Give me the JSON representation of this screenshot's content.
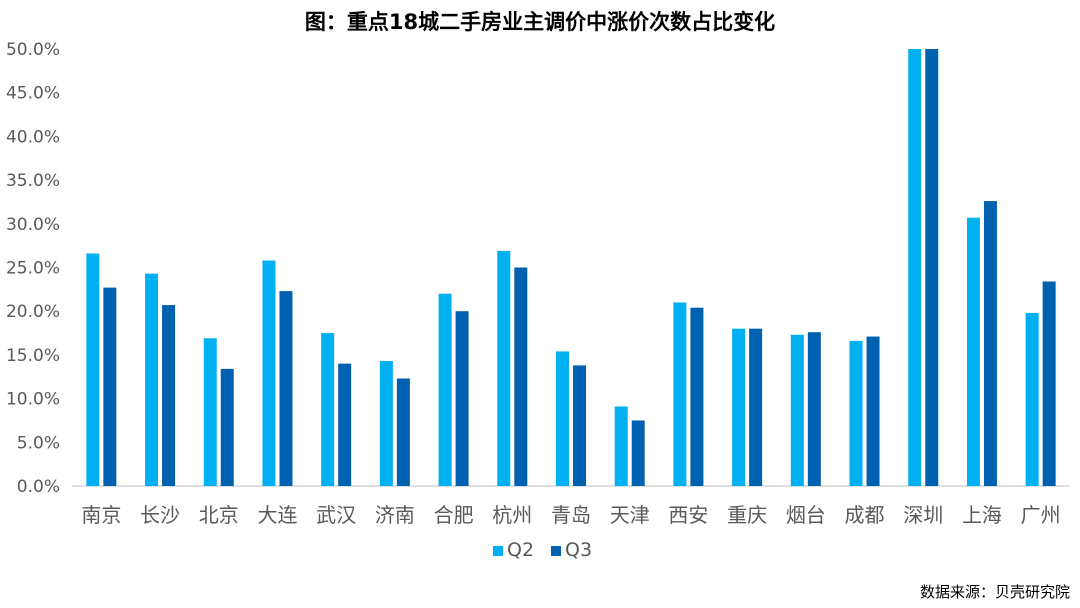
{
  "chart_data": {
    "type": "bar",
    "title": "图：重点18城二手房业主调价中涨价次数占比变化",
    "xlabel": "",
    "ylabel": "",
    "categories": [
      "南京",
      "长沙",
      "北京",
      "大连",
      "武汉",
      "济南",
      "合肥",
      "杭州",
      "青岛",
      "天津",
      "西安",
      "重庆",
      "烟台",
      "成都",
      "深圳",
      "上海",
      "广州"
    ],
    "series": [
      {
        "name": "Q2",
        "color": "#00b0f0",
        "values": [
          26.6,
          24.3,
          16.9,
          25.8,
          17.5,
          14.3,
          22.0,
          26.9,
          15.4,
          9.1,
          21.0,
          18.0,
          17.3,
          16.6,
          50.0,
          30.7,
          19.8
        ]
      },
      {
        "name": "Q3",
        "color": "#0061b0",
        "values": [
          22.7,
          20.7,
          13.4,
          22.3,
          14.0,
          12.3,
          20.0,
          25.0,
          13.8,
          7.5,
          20.4,
          18.0,
          17.6,
          17.1,
          50.0,
          32.6,
          23.4
        ]
      }
    ],
    "ylim": [
      0,
      50
    ],
    "yticks": [
      "0.0%",
      "5.0%",
      "10.0%",
      "15.0%",
      "20.0%",
      "25.0%",
      "30.0%",
      "35.0%",
      "40.0%",
      "45.0%",
      "50.0%"
    ],
    "grid": false,
    "legend": "bottom"
  },
  "source_text": "数据来源：贝壳研究院"
}
